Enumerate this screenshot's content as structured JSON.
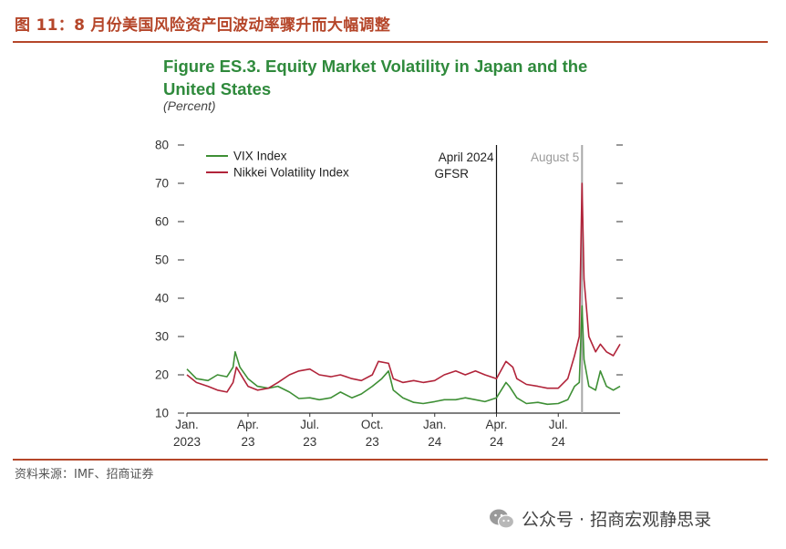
{
  "header": {
    "title": "图 11：8 月份美国风险资产回波动率骤升而大幅调整"
  },
  "figure": {
    "title_line1": "Figure ES.3. Equity Market Volatility in Japan and the",
    "title_line2": "United States",
    "subtitle": "(Percent)"
  },
  "footer": {
    "source": "资料来源：IMF、招商证券",
    "watermark": "公众号 · 招商宏观静思录"
  },
  "colors": {
    "accent": "#b5462a",
    "vix": "#3e8f35",
    "nikkei": "#b1243a",
    "title_green": "#2f8a3c"
  },
  "chart_data": {
    "type": "line",
    "title": "Figure ES.3. Equity Market Volatility in Japan and the United States",
    "subtitle": "(Percent)",
    "ylim": [
      10,
      80
    ],
    "y_ticks": [
      10,
      20,
      30,
      40,
      50,
      60,
      70,
      80
    ],
    "x_tick_labels": [
      {
        "top": "Jan.",
        "bottom": "2023",
        "x": "2023-01"
      },
      {
        "top": "Apr.",
        "bottom": "23",
        "x": "2023-04"
      },
      {
        "top": "Jul.",
        "bottom": "23",
        "x": "2023-07"
      },
      {
        "top": "Oct.",
        "bottom": "23",
        "x": "2023-10"
      },
      {
        "top": "Jan.",
        "bottom": "24",
        "x": "2024-01"
      },
      {
        "top": "Apr.",
        "bottom": "24",
        "x": "2024-04"
      },
      {
        "top": "Jul.",
        "bottom": "24",
        "x": "2024-07"
      }
    ],
    "xlim": [
      "2023-01",
      "2024-09"
    ],
    "legend_position": "top-left",
    "annotations": [
      {
        "label_line1": "April 2024",
        "label_line2": "GFSR",
        "x": "2024-04",
        "style": "solid"
      },
      {
        "label_line1": "August 5",
        "label_line2": "",
        "x": "2024-08-05",
        "style": "gray"
      }
    ],
    "series": [
      {
        "name": "VIX Index",
        "color": "#3e8f35",
        "points": [
          [
            "2023-01-01",
            21.5
          ],
          [
            "2023-01-15",
            19
          ],
          [
            "2023-02-01",
            18.5
          ],
          [
            "2023-02-15",
            20
          ],
          [
            "2023-03-01",
            19.5
          ],
          [
            "2023-03-10",
            22
          ],
          [
            "2023-03-13",
            26
          ],
          [
            "2023-03-20",
            22
          ],
          [
            "2023-04-01",
            19
          ],
          [
            "2023-04-15",
            17
          ],
          [
            "2023-05-01",
            16.5
          ],
          [
            "2023-05-15",
            17
          ],
          [
            "2023-06-01",
            15.5
          ],
          [
            "2023-06-15",
            13.8
          ],
          [
            "2023-07-01",
            14
          ],
          [
            "2023-07-15",
            13.5
          ],
          [
            "2023-08-01",
            14
          ],
          [
            "2023-08-15",
            15.5
          ],
          [
            "2023-09-01",
            14
          ],
          [
            "2023-09-15",
            15
          ],
          [
            "2023-10-01",
            17
          ],
          [
            "2023-10-15",
            19
          ],
          [
            "2023-10-25",
            21
          ],
          [
            "2023-11-01",
            16
          ],
          [
            "2023-11-15",
            14
          ],
          [
            "2023-12-01",
            12.8
          ],
          [
            "2023-12-15",
            12.5
          ],
          [
            "2024-01-01",
            13
          ],
          [
            "2024-01-15",
            13.5
          ],
          [
            "2024-02-01",
            13.5
          ],
          [
            "2024-02-15",
            14
          ],
          [
            "2024-03-01",
            13.5
          ],
          [
            "2024-03-15",
            13
          ],
          [
            "2024-04-01",
            14
          ],
          [
            "2024-04-15",
            18
          ],
          [
            "2024-04-20",
            17
          ],
          [
            "2024-05-01",
            14
          ],
          [
            "2024-05-15",
            12.5
          ],
          [
            "2024-06-01",
            12.8
          ],
          [
            "2024-06-15",
            12.3
          ],
          [
            "2024-07-01",
            12.5
          ],
          [
            "2024-07-15",
            13.5
          ],
          [
            "2024-07-25",
            17
          ],
          [
            "2024-08-01",
            18
          ],
          [
            "2024-08-05",
            38
          ],
          [
            "2024-08-08",
            24
          ],
          [
            "2024-08-15",
            17
          ],
          [
            "2024-08-25",
            16
          ],
          [
            "2024-09-01",
            21
          ],
          [
            "2024-09-10",
            17
          ],
          [
            "2024-09-20",
            16
          ],
          [
            "2024-09-30",
            17
          ]
        ]
      },
      {
        "name": "Nikkei Volatility Index",
        "color": "#b1243a",
        "points": [
          [
            "2023-01-01",
            20
          ],
          [
            "2023-01-15",
            18
          ],
          [
            "2023-02-01",
            17
          ],
          [
            "2023-02-15",
            16
          ],
          [
            "2023-03-01",
            15.5
          ],
          [
            "2023-03-10",
            18
          ],
          [
            "2023-03-15",
            22
          ],
          [
            "2023-03-25",
            19
          ],
          [
            "2023-04-01",
            17
          ],
          [
            "2023-04-15",
            16
          ],
          [
            "2023-05-01",
            16.5
          ],
          [
            "2023-05-15",
            18
          ],
          [
            "2023-06-01",
            20
          ],
          [
            "2023-06-15",
            21
          ],
          [
            "2023-07-01",
            21.5
          ],
          [
            "2023-07-15",
            20
          ],
          [
            "2023-08-01",
            19.5
          ],
          [
            "2023-08-15",
            20
          ],
          [
            "2023-09-01",
            19
          ],
          [
            "2023-09-15",
            18.5
          ],
          [
            "2023-10-01",
            20
          ],
          [
            "2023-10-10",
            23.5
          ],
          [
            "2023-10-25",
            23
          ],
          [
            "2023-11-01",
            19
          ],
          [
            "2023-11-15",
            18
          ],
          [
            "2023-12-01",
            18.5
          ],
          [
            "2023-12-15",
            18
          ],
          [
            "2024-01-01",
            18.5
          ],
          [
            "2024-01-15",
            20
          ],
          [
            "2024-02-01",
            21
          ],
          [
            "2024-02-15",
            20
          ],
          [
            "2024-03-01",
            21
          ],
          [
            "2024-03-15",
            20
          ],
          [
            "2024-04-01",
            19
          ],
          [
            "2024-04-15",
            23.5
          ],
          [
            "2024-04-25",
            22
          ],
          [
            "2024-05-01",
            19
          ],
          [
            "2024-05-15",
            17.5
          ],
          [
            "2024-06-01",
            17
          ],
          [
            "2024-06-15",
            16.5
          ],
          [
            "2024-07-01",
            16.5
          ],
          [
            "2024-07-15",
            19
          ],
          [
            "2024-07-25",
            25
          ],
          [
            "2024-08-01",
            30
          ],
          [
            "2024-08-05",
            70
          ],
          [
            "2024-08-08",
            45
          ],
          [
            "2024-08-15",
            30
          ],
          [
            "2024-08-25",
            26
          ],
          [
            "2024-09-01",
            28
          ],
          [
            "2024-09-10",
            26
          ],
          [
            "2024-09-20",
            25
          ],
          [
            "2024-09-30",
            28
          ]
        ]
      }
    ]
  }
}
